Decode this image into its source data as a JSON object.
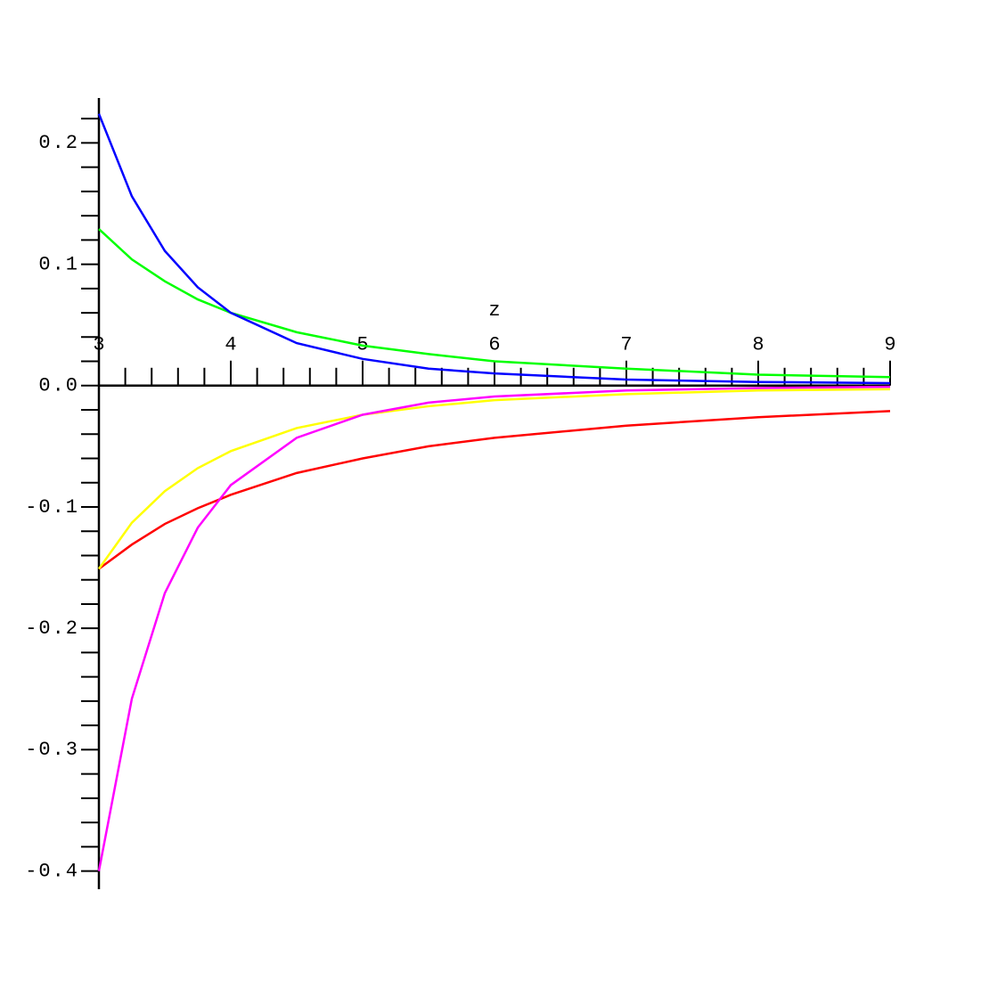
{
  "chart_data": {
    "type": "line",
    "xlabel": "z",
    "x": [
      3,
      3.25,
      3.5,
      3.75,
      4,
      4.5,
      5,
      5.5,
      6,
      7,
      8,
      9
    ],
    "series": [
      {
        "color": "#ff0000",
        "values": [
          -0.151,
          -0.131,
          -0.114,
          -0.101,
          -0.09,
          -0.072,
          -0.06,
          -0.05,
          -0.043,
          -0.033,
          -0.026,
          -0.021
        ]
      },
      {
        "color": "#ffff00",
        "values": [
          -0.151,
          -0.113,
          -0.087,
          -0.068,
          -0.054,
          -0.035,
          -0.024,
          -0.017,
          -0.012,
          -0.007,
          -0.004,
          -0.003
        ]
      },
      {
        "color": "#ff00ff",
        "values": [
          -0.4,
          -0.258,
          -0.171,
          -0.117,
          -0.082,
          -0.043,
          -0.024,
          -0.014,
          -0.009,
          -0.004,
          -0.002,
          -0.001
        ]
      },
      {
        "color": "#00ff00",
        "values": [
          0.129,
          0.104,
          0.086,
          0.071,
          0.06,
          0.044,
          0.033,
          0.026,
          0.02,
          0.014,
          0.009,
          0.007
        ]
      },
      {
        "color": "#0000ff",
        "values": [
          0.224,
          0.156,
          0.111,
          0.081,
          0.06,
          0.035,
          0.022,
          0.014,
          0.01,
          0.005,
          0.003,
          0.002
        ]
      }
    ],
    "xlim": [
      3,
      9
    ],
    "ylim": [
      -0.415,
      0.237
    ],
    "xticks": [
      3,
      4,
      5,
      6,
      7,
      8,
      9
    ],
    "yticks": [
      0.2,
      0.1,
      {
        "value": 0,
        "label": "0.0"
      },
      -0.1,
      -0.2,
      -0.3,
      -0.4
    ],
    "xminorticks": [
      3.2,
      3.4,
      3.6,
      3.8,
      4.2,
      4.4,
      4.6,
      4.8,
      5.2,
      5.4,
      5.6,
      5.8,
      6.2,
      6.4,
      6.6,
      6.8,
      7.2,
      7.4,
      7.6,
      7.8,
      8.2,
      8.4,
      8.6,
      8.8
    ],
    "yminorticks": [
      0.22,
      0.18,
      0.16,
      0.14,
      0.12,
      0.08,
      0.06,
      0.04,
      0.02,
      -0.02,
      -0.04,
      -0.06,
      -0.08,
      -0.12,
      -0.14,
      -0.16,
      -0.18,
      -0.22,
      -0.24,
      -0.26,
      -0.28,
      -0.32,
      -0.34,
      -0.36,
      -0.38
    ]
  }
}
